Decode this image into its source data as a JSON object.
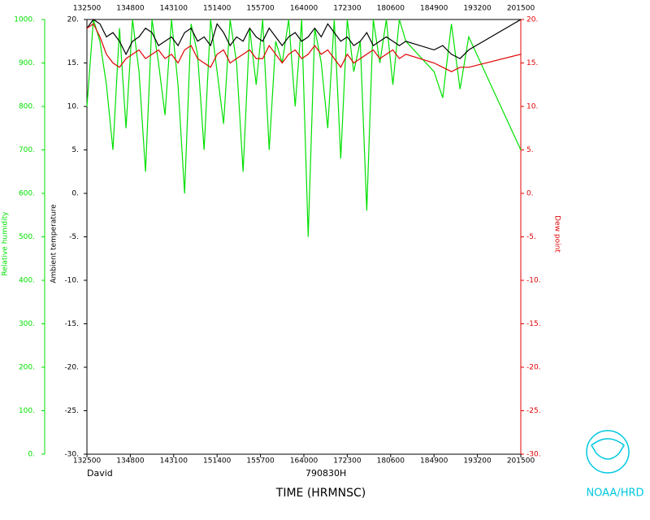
{
  "chart_data": {
    "type": "line",
    "subtitle": "David",
    "date_label": "790830H",
    "xlabel": "TIME (HRMNSC)",
    "ylabel": "Ambient temperature",
    "y2label": "Relative humidity",
    "y3label": "Dew point",
    "credit": "NOAA/HRD",
    "categories": [
      "132500",
      "134800",
      "143100",
      "151400",
      "155700",
      "164000",
      "172300",
      "180600",
      "184900",
      "193200",
      "201500"
    ],
    "x": [
      0,
      0.15,
      0.3,
      0.45,
      0.6,
      0.75,
      0.9,
      1.05,
      1.2,
      1.35,
      1.5,
      1.65,
      1.8,
      1.95,
      2.1,
      2.25,
      2.4,
      2.55,
      2.7,
      2.85,
      3,
      3.15,
      3.3,
      3.45,
      3.6,
      3.75,
      3.9,
      4.05,
      4.2,
      4.35,
      4.5,
      4.65,
      4.8,
      4.95,
      5.1,
      5.25,
      5.4,
      5.55,
      5.7,
      5.85,
      6,
      6.15,
      6.3,
      6.45,
      6.6,
      6.75,
      6.9,
      7.05,
      7.2,
      7.35,
      8,
      8.2,
      8.4,
      8.6,
      8.8,
      10
    ],
    "ylim": [
      -30,
      20
    ],
    "yticks": [
      {
        "value": 20,
        "label": "20."
      },
      {
        "value": 15,
        "label": "15."
      },
      {
        "value": 10,
        "label": "10."
      },
      {
        "value": 5,
        "label": "5."
      },
      {
        "value": 0,
        "label": "0."
      },
      {
        "value": -5,
        "label": "-5."
      },
      {
        "value": -10,
        "label": "-10."
      },
      {
        "value": -15,
        "label": "-15."
      },
      {
        "value": -20,
        "label": "-20."
      },
      {
        "value": -25,
        "label": "-25."
      },
      {
        "value": -30,
        "label": "-30."
      }
    ],
    "y2lim": [
      0,
      1000
    ],
    "y2ticks": [
      {
        "value": 1000,
        "label": "1000."
      },
      {
        "value": 900,
        "label": "900."
      },
      {
        "value": 800,
        "label": "800."
      },
      {
        "value": 700,
        "label": "700."
      },
      {
        "value": 600,
        "label": "600."
      },
      {
        "value": 500,
        "label": "500."
      },
      {
        "value": 400,
        "label": "400."
      },
      {
        "value": 300,
        "label": "300."
      },
      {
        "value": 200,
        "label": "200."
      },
      {
        "value": 100,
        "label": "100."
      },
      {
        "value": 0,
        "label": "0."
      }
    ],
    "series": [
      {
        "name": "Relative humidity",
        "color": "#00e000",
        "axis": "y2",
        "values": [
          800,
          1000,
          950,
          850,
          700,
          980,
          750,
          1000,
          880,
          650,
          1000,
          900,
          780,
          1000,
          850,
          600,
          990,
          920,
          700,
          1000,
          880,
          760,
          1000,
          900,
          650,
          980,
          850,
          1000,
          700,
          950,
          900,
          1000,
          800,
          1000,
          500,
          980,
          900,
          750,
          1000,
          680,
          1000,
          880,
          950,
          560,
          1000,
          900,
          1000,
          850,
          1000,
          950,
          880,
          820,
          990,
          840,
          960,
          700
        ]
      },
      {
        "name": "Ambient temperature",
        "color": "#000000",
        "values": [
          19,
          20,
          19.5,
          18,
          18.5,
          17.5,
          16,
          17.5,
          18,
          19,
          18.5,
          17,
          17.5,
          18,
          17,
          18.5,
          19,
          17.5,
          18,
          17,
          19.5,
          18.5,
          17,
          18,
          17.5,
          19,
          18,
          17.5,
          19,
          18,
          17,
          18,
          18.5,
          17.5,
          18,
          19,
          18,
          19.5,
          18.5,
          17.5,
          18,
          17,
          17.5,
          18.5,
          17,
          17.5,
          18,
          17.5,
          17,
          17.5,
          16.5,
          17,
          16,
          15.5,
          16.5,
          20
        ]
      },
      {
        "name": "Dew point",
        "color": "#e00000",
        "values": [
          19,
          19.5,
          18,
          16,
          15,
          14.5,
          15.5,
          16,
          16.5,
          15.5,
          16,
          16.5,
          15.5,
          16,
          15,
          16.5,
          17,
          15.5,
          15,
          14.5,
          16,
          16.5,
          15,
          15.5,
          16,
          16.5,
          15.5,
          15.5,
          17,
          16,
          15,
          16,
          16.5,
          15.5,
          16,
          17,
          16,
          16.5,
          15.5,
          14.5,
          16,
          15,
          15.5,
          16,
          16.5,
          15.5,
          16,
          16.5,
          15.5,
          16,
          15,
          14.5,
          14,
          14.5,
          14.5,
          16
        ]
      }
    ]
  }
}
